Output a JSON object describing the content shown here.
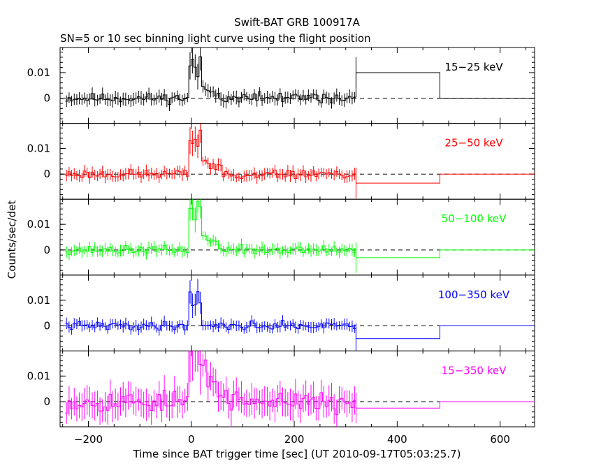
{
  "chart_data": {
    "type": "line",
    "title": "Swift-BAT GRB 100917A",
    "subtitle": "SN=5 or 10 sec binning light curve using the flight position",
    "xlabel": "Time since BAT trigger time [sec] (UT 2010-09-17T05:03:25.7)",
    "ylabel": "Counts/sec/det",
    "xlim": [
      -255,
      667
    ],
    "x_ticks": [
      -200,
      0,
      200,
      400,
      600
    ],
    "x_tick_labels": [
      "−200",
      "0",
      "200",
      "400",
      "600"
    ],
    "ylim": [
      -0.0098,
      0.0198
    ],
    "y_ticks": [
      0,
      0.01
    ],
    "y_tick_labels": [
      "0",
      "0.01"
    ],
    "zero_line": "dashed",
    "grid": false,
    "series": [
      {
        "name": "15−25 keV",
        "color": "#000000",
        "noise": 0.0015,
        "peak": 0.014,
        "tail": 0.003,
        "late": [
          0.01,
          0.0
        ],
        "seed": 11
      },
      {
        "name": "25−50 keV",
        "color": "#ff0000",
        "noise": 0.0014,
        "peak": 0.018,
        "tail": 0.004,
        "late": [
          -0.0035,
          0.0
        ],
        "seed": 23
      },
      {
        "name": "50−100 keV",
        "color": "#00ff00",
        "noise": 0.0013,
        "peak": 0.017,
        "tail": 0.004,
        "late": [
          -0.003,
          0.0
        ],
        "seed": 37
      },
      {
        "name": "100−350 keV",
        "color": "#0000ff",
        "noise": 0.0013,
        "peak": 0.012,
        "tail": 0.0005,
        "late": [
          -0.005,
          0.0
        ],
        "seed": 41
      },
      {
        "name": "15−350 keV",
        "color": "#ff00ff",
        "noise": 0.0035,
        "peak": 0.022,
        "tail": 0.01,
        "late": [
          -0.0025,
          0.0
        ],
        "seed": 53
      }
    ],
    "late_bins": [
      [
        320,
        483
      ],
      [
        483,
        667
      ]
    ]
  }
}
